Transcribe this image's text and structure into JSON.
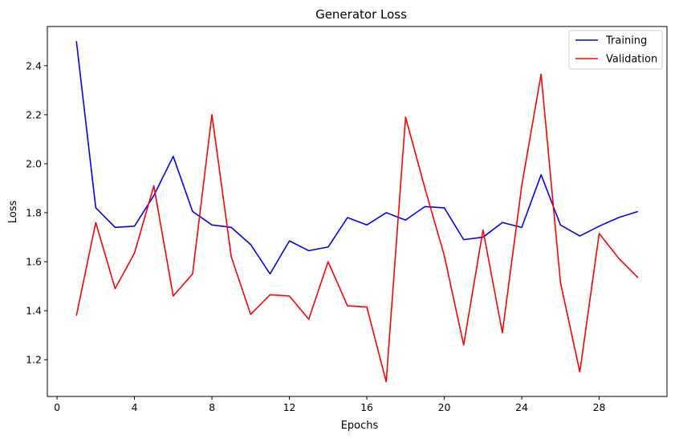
{
  "chart_data": {
    "type": "line",
    "title": "Generator Loss",
    "xlabel": "Epochs",
    "ylabel": "Loss",
    "xlim": [
      -0.5,
      31.5
    ],
    "ylim": [
      1.05,
      2.56
    ],
    "xticks": [
      0,
      4,
      8,
      12,
      16,
      20,
      24,
      28
    ],
    "yticks": [
      1.2,
      1.4,
      1.6,
      1.8,
      2.0,
      2.2,
      2.4
    ],
    "ytick_labels": [
      "1.2",
      "1.4",
      "1.6",
      "1.8",
      "2.0",
      "2.2",
      "2.4"
    ],
    "grid": false,
    "legend_position": "top-right",
    "x": [
      1,
      2,
      3,
      4,
      5,
      6,
      7,
      8,
      9,
      10,
      11,
      12,
      13,
      14,
      15,
      16,
      17,
      18,
      19,
      20,
      21,
      22,
      23,
      24,
      25,
      26,
      27,
      28,
      29,
      30
    ],
    "series": [
      {
        "name": "Training",
        "color": "#0000ff",
        "values": [
          2.5,
          1.82,
          1.74,
          1.745,
          1.87,
          2.03,
          1.805,
          1.75,
          1.74,
          1.67,
          1.55,
          1.685,
          1.645,
          1.66,
          1.78,
          1.75,
          1.8,
          1.77,
          1.825,
          1.82,
          1.69,
          1.7,
          1.76,
          1.74,
          1.955,
          1.75,
          1.705,
          1.745,
          1.78,
          1.805
        ]
      },
      {
        "name": "Validation",
        "color": "#ff0000",
        "values": [
          1.38,
          1.76,
          1.49,
          1.635,
          1.91,
          1.46,
          1.55,
          2.2,
          1.62,
          1.385,
          1.465,
          1.46,
          1.365,
          1.6,
          1.42,
          1.415,
          1.11,
          2.19,
          1.9,
          1.625,
          1.26,
          1.73,
          1.31,
          1.91,
          2.365,
          1.515,
          1.15,
          1.715,
          1.615,
          1.535
        ]
      }
    ]
  }
}
